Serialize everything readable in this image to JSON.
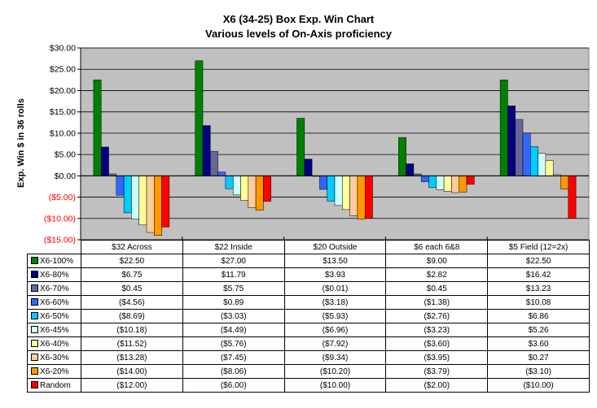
{
  "chart_data": {
    "type": "bar",
    "title": "X6 (34-25) Box Exp. Win Chart",
    "subtitle": "Various levels of On-Axis proficiency",
    "ylabel": "Exp. Win $ in 36 rolls",
    "xlabel": "",
    "ylim": [
      -15,
      30
    ],
    "yticks": [
      "$30.00",
      "$25.00",
      "$20.00",
      "$15.00",
      "$10.00",
      "$5.00",
      "$0.00",
      "($5.00)",
      "($10.00)",
      "($15.00)"
    ],
    "grid": true,
    "legend": "data-table",
    "categories": [
      "$32 Across",
      "$22 Inside",
      "$20 Outside",
      "$6 each 6&8",
      "$5 Field (12=2x)"
    ],
    "series": [
      {
        "name": "X6-100%",
        "color": "#008000",
        "values": [
          22.5,
          27.0,
          13.5,
          9.0,
          22.5
        ],
        "labels": [
          "$22.50",
          "$27.00",
          "$13.50",
          "$9.00",
          "$22.50"
        ]
      },
      {
        "name": "X6-80%",
        "color": "#000080",
        "values": [
          6.75,
          11.79,
          3.93,
          2.82,
          16.42
        ],
        "labels": [
          "$6.75",
          "$11.79",
          "$3.93",
          "$2.82",
          "$16.42"
        ]
      },
      {
        "name": "X6-70%",
        "color": "#666699",
        "values": [
          0.45,
          5.75,
          -0.01,
          0.45,
          13.23
        ],
        "labels": [
          "$0.45",
          "$5.75",
          "($0.01)",
          "$0.45",
          "$13.23"
        ]
      },
      {
        "name": "X6-60%",
        "color": "#3366FF",
        "values": [
          -4.56,
          0.89,
          -3.18,
          -1.38,
          10.08
        ],
        "labels": [
          "($4.56)",
          "$0.89",
          "($3.18)",
          "($1.38)",
          "$10.08"
        ]
      },
      {
        "name": "X6-50%",
        "color": "#00CCFF",
        "values": [
          -8.69,
          -3.03,
          -5.93,
          -2.76,
          6.86
        ],
        "labels": [
          "($8.69)",
          "($3.03)",
          "($5.93)",
          "($2.76)",
          "$6.86"
        ]
      },
      {
        "name": "X6-45%",
        "color": "#CCFFFF",
        "values": [
          -10.18,
          -4.49,
          -6.96,
          -3.23,
          5.26
        ],
        "labels": [
          "($10.18)",
          "($4.49)",
          "($6.96)",
          "($3.23)",
          "$5.26"
        ]
      },
      {
        "name": "X6-40%",
        "color": "#FFFF99",
        "values": [
          -11.52,
          -5.76,
          -7.92,
          -3.6,
          3.6
        ],
        "labels": [
          "($11.52)",
          "($5.76)",
          "($7.92)",
          "($3.60)",
          "$3.60"
        ]
      },
      {
        "name": "X6-30%",
        "color": "#FFCC99",
        "values": [
          -13.28,
          -7.45,
          -9.34,
          -3.95,
          0.27
        ],
        "labels": [
          "($13.28)",
          "($7.45)",
          "($9.34)",
          "($3.95)",
          "$0.27"
        ]
      },
      {
        "name": "X6-20%",
        "color": "#FF9900",
        "values": [
          -14.0,
          -8.06,
          -10.2,
          -3.79,
          -3.1
        ],
        "labels": [
          "($14.00)",
          "($8.06)",
          "($10.20)",
          "($3.79)",
          "($3.10)"
        ]
      },
      {
        "name": "Random",
        "color": "#FF0000",
        "values": [
          -12.0,
          -6.0,
          -10.0,
          -2.0,
          -10.0
        ],
        "labels": [
          "($12.00)",
          "($6.00)",
          "($10.00)",
          "($2.00)",
          "($10.00)"
        ]
      }
    ],
    "colors": {
      "plot_background": "#C0C0C0",
      "gridline": "#000000"
    }
  }
}
